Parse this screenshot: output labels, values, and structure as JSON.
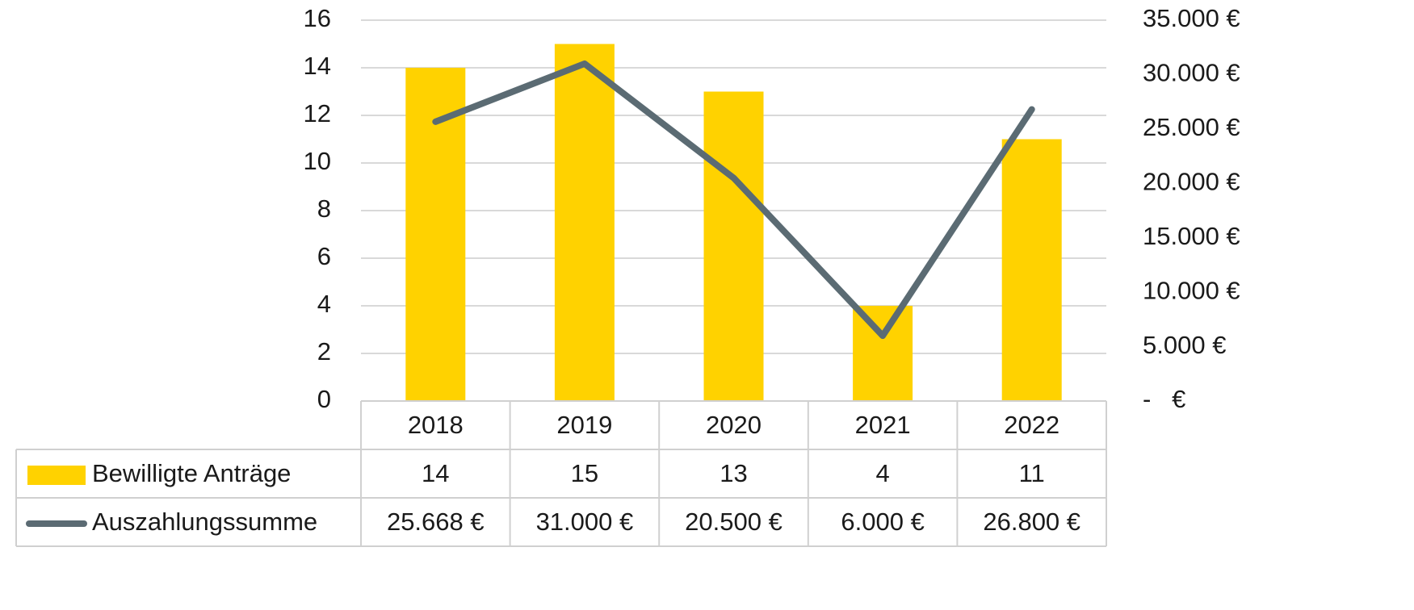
{
  "chart_data": {
    "type": "bar_line",
    "categories": [
      "2018",
      "2019",
      "2020",
      "2021",
      "2022"
    ],
    "series": [
      {
        "name": "Bewilligte Anträge",
        "color": "#ffd200",
        "type": "bar",
        "values": [
          14,
          15,
          13,
          4,
          11
        ]
      },
      {
        "name": "Auszahlungssumme",
        "color": "#5b6b73",
        "type": "line",
        "axis": "y2",
        "values": [
          25668,
          31000,
          20500,
          6000,
          26800
        ],
        "value_labels": [
          "25.668 €",
          "31.000 €",
          "20.500 €",
          "6.000 €",
          "26.800 €"
        ]
      }
    ],
    "ylim": [
      0,
      16
    ],
    "yticks": [
      0,
      2,
      4,
      6,
      8,
      10,
      12,
      14,
      16
    ],
    "y2lim": [
      0,
      35000
    ],
    "y2ticks": [
      {
        "value": 0,
        "label": "-   €"
      },
      {
        "value": 5000,
        "label": "5.000 €"
      },
      {
        "value": 10000,
        "label": "10.000 €"
      },
      {
        "value": 15000,
        "label": "15.000 €"
      },
      {
        "value": 20000,
        "label": "20.000 €"
      },
      {
        "value": 25000,
        "label": "25.000 €"
      },
      {
        "value": 30000,
        "label": "30.000 €"
      },
      {
        "value": 35000,
        "label": "35.000 €"
      }
    ],
    "grid": true,
    "data_table": true
  }
}
